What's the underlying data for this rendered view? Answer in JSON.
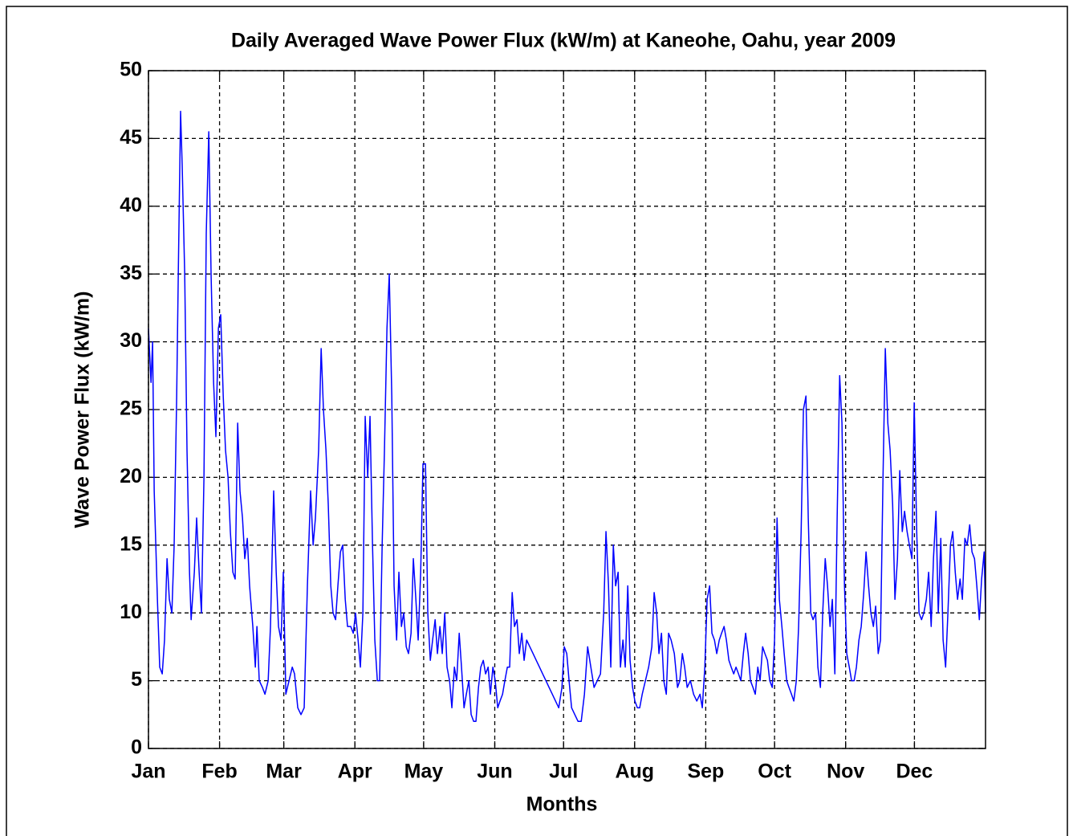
{
  "chart_data": {
    "type": "line",
    "title": "Daily Averaged Wave Power Flux (kW/m) at Kaneohe, Oahu, year 2009",
    "x_label": "Months",
    "y_label": "Wave Power Flux (kW/m)",
    "color": "#0000ff",
    "grid": true,
    "xlim": [
      0,
      365
    ],
    "ylim": [
      0,
      50
    ],
    "yticks": [
      0,
      5,
      10,
      15,
      20,
      25,
      30,
      35,
      40,
      45,
      50
    ],
    "xticks": [
      {
        "value": 0,
        "label": "Jan"
      },
      {
        "value": 31,
        "label": "Feb"
      },
      {
        "value": 59,
        "label": "Mar"
      },
      {
        "value": 90,
        "label": "Apr"
      },
      {
        "value": 120,
        "label": "May"
      },
      {
        "value": 151,
        "label": "Jun"
      },
      {
        "value": 181,
        "label": "Jul"
      },
      {
        "value": 212,
        "label": "Aug"
      },
      {
        "value": 243,
        "label": "Sep"
      },
      {
        "value": 273,
        "label": "Oct"
      },
      {
        "value": 304,
        "label": "Nov"
      },
      {
        "value": 334,
        "label": "Dec"
      }
    ],
    "x": [
      0,
      1.1,
      1.8,
      2.5,
      3.9,
      4.9,
      6.0,
      7.0,
      8.1,
      9.1,
      10.2,
      11.2,
      12.3,
      13.0,
      14.0,
      14.7,
      15.8,
      16.8,
      17.9,
      18.6,
      20.0,
      21.0,
      22.1,
      23.1,
      24.2,
      25.2,
      26.3,
      27.3,
      28.4,
      29.4,
      30.5,
      31.5,
      32.6,
      33.6,
      34.7,
      35.7,
      36.8,
      37.8,
      38.9,
      39.9,
      41.0,
      42.0,
      43.1,
      44.1,
      45.5,
      46.6,
      47.3,
      48.3,
      49.7,
      50.8,
      52.2,
      53.2,
      54.6,
      55.7,
      56.7,
      57.8,
      58.8,
      59.9,
      61.3,
      62.7,
      63.7,
      65.1,
      66.5,
      67.9,
      69.3,
      70.7,
      71.8,
      72.8,
      74.2,
      75.3,
      76.3,
      77.4,
      78.4,
      79.5,
      80.5,
      81.6,
      82.6,
      83.7,
      84.7,
      85.8,
      86.8,
      88.2,
      89.3,
      90.3,
      91.4,
      92.4,
      93.5,
      94.5,
      95.6,
      96.6,
      97.7,
      98.7,
      99.8,
      100.8,
      101.9,
      102.9,
      104.0,
      105.0,
      106.1,
      107.1,
      108.2,
      109.2,
      110.3,
      111.3,
      112.4,
      113.4,
      114.5,
      115.5,
      116.6,
      117.6,
      118.7,
      119.7,
      120.8,
      121.8,
      122.9,
      123.9,
      125.0,
      126.0,
      127.1,
      128.1,
      129.2,
      130.2,
      131.3,
      132.3,
      133.4,
      134.4,
      135.5,
      136.5,
      137.6,
      138.6,
      139.7,
      140.7,
      141.8,
      142.8,
      143.9,
      144.9,
      146.0,
      147.0,
      148.1,
      149.1,
      150.2,
      151.2,
      152.3,
      153.3,
      154.4,
      155.4,
      156.5,
      157.5,
      158.6,
      159.6,
      160.7,
      161.7,
      162.8,
      163.8,
      164.9,
      166.3,
      167.7,
      169.1,
      170.5,
      171.9,
      173.3,
      174.7,
      176.1,
      177.5,
      178.9,
      180.3,
      181.3,
      182.4,
      183.4,
      184.5,
      185.9,
      187.3,
      188.7,
      190.1,
      191.5,
      192.9,
      194.3,
      195.7,
      197.1,
      198.5,
      199.5,
      200.6,
      201.6,
      202.7,
      203.7,
      204.8,
      205.8,
      206.9,
      207.9,
      209.0,
      210.0,
      211.1,
      212.1,
      213.2,
      214.2,
      215.3,
      216.7,
      218.1,
      219.5,
      220.5,
      221.6,
      222.6,
      223.7,
      224.7,
      225.8,
      226.8,
      227.9,
      229.3,
      230.7,
      231.7,
      232.8,
      233.8,
      234.9,
      236.3,
      237.7,
      239.1,
      240.5,
      241.5,
      242.6,
      243.6,
      244.7,
      245.7,
      246.8,
      247.8,
      248.9,
      249.9,
      251.0,
      252.0,
      253.1,
      254.1,
      255.2,
      256.2,
      257.3,
      258.3,
      259.4,
      260.4,
      261.5,
      262.5,
      263.6,
      264.6,
      265.7,
      266.7,
      267.8,
      268.8,
      269.9,
      270.9,
      272.0,
      273.0,
      274.1,
      275.1,
      276.2,
      277.2,
      278.3,
      279.3,
      280.4,
      281.4,
      282.5,
      283.5,
      284.6,
      285.6,
      286.7,
      287.7,
      288.8,
      289.8,
      290.9,
      291.9,
      293.0,
      294.0,
      295.1,
      296.1,
      297.2,
      298.2,
      299.3,
      300.3,
      301.4,
      302.4,
      303.5,
      304.5,
      305.6,
      306.6,
      307.7,
      308.7,
      309.8,
      310.8,
      311.9,
      312.9,
      314.0,
      315.0,
      316.1,
      317.1,
      318.2,
      319.2,
      320.3,
      321.3,
      322.4,
      323.4,
      324.5,
      325.5,
      326.6,
      327.6,
      328.7,
      329.7,
      330.8,
      331.8,
      332.9,
      333.9,
      335.0,
      336.0,
      337.1,
      338.1,
      339.2,
      340.2,
      341.3,
      342.3,
      343.4,
      344.4,
      345.5,
      346.5,
      347.6,
      348.6,
      349.7,
      350.7,
      351.8,
      352.8,
      353.9,
      354.9,
      356.0,
      357.0,
      358.1,
      359.1,
      360.2,
      361.2,
      362.3,
      363.3,
      364.4,
      365
    ],
    "values": [
      31,
      27,
      30,
      19,
      11,
      6,
      5.5,
      8,
      14,
      11,
      10,
      15,
      26,
      35,
      47,
      43,
      35,
      22,
      13,
      9.5,
      13,
      17,
      13,
      10,
      20,
      38,
      45.5,
      35,
      27,
      23,
      31,
      32,
      26,
      22,
      20,
      16,
      13,
      12.5,
      24,
      19,
      17,
      14,
      15.5,
      12,
      9,
      6,
      9,
      5,
      4.5,
      4,
      5,
      9,
      19,
      13,
      9,
      8,
      13,
      4,
      5,
      6,
      5.5,
      3,
      2.5,
      3,
      12,
      19,
      15,
      17,
      22,
      29.5,
      25,
      22,
      18,
      12,
      10,
      9.5,
      12,
      14.5,
      15,
      11,
      9,
      9,
      8.5,
      10,
      8,
      6,
      10,
      24.5,
      20,
      24.5,
      15,
      8,
      5,
      5,
      15,
      22,
      31,
      35,
      26,
      12,
      8,
      13,
      9,
      10,
      7.5,
      7,
      8.5,
      14,
      11,
      8,
      13,
      21,
      21,
      10,
      6.5,
      8,
      9.5,
      7,
      9,
      7,
      10,
      6,
      5,
      3,
      6,
      5,
      8.5,
      6,
      3,
      4,
      5,
      2.5,
      2,
      2,
      4.5,
      6,
      6.5,
      5.5,
      6,
      4,
      6,
      5,
      3,
      3.5,
      4,
      5,
      6,
      6,
      11.5,
      9,
      9.5,
      7,
      8.5,
      6.5,
      8,
      7.5,
      7,
      6.5,
      6,
      5.5,
      5,
      4.5,
      4,
      3.5,
      3,
      4.5,
      7.5,
      7,
      5,
      3,
      2.5,
      2,
      2,
      4,
      7.5,
      6,
      4.5,
      5,
      5.5,
      10,
      16,
      12,
      6,
      15,
      12,
      13,
      6,
      8,
      6,
      12,
      6.5,
      4.5,
      3.5,
      3,
      3,
      4,
      5,
      6,
      7.5,
      11.5,
      10,
      7,
      8.5,
      5,
      4,
      8.5,
      8,
      7,
      4.5,
      5,
      7,
      6,
      4.5,
      5,
      4,
      3.5,
      4,
      3,
      6,
      11,
      12,
      8.5,
      8,
      7,
      8,
      8.5,
      9,
      8,
      6.5,
      6,
      5.5,
      6,
      5.5,
      5,
      7,
      8.5,
      7,
      5,
      4.5,
      4,
      6,
      5,
      7.5,
      7,
      6.5,
      5,
      4.5,
      8,
      17,
      11,
      9,
      7,
      5,
      4.5,
      4,
      3.5,
      5,
      9,
      16,
      25,
      26,
      17,
      10,
      9.5,
      10,
      6,
      4.5,
      10,
      14,
      12,
      9,
      11,
      5.5,
      17,
      27.5,
      24,
      12,
      7,
      6,
      5,
      5,
      6,
      8,
      9,
      11.5,
      14.5,
      12,
      10,
      9,
      10.5,
      7,
      8,
      20,
      29.5,
      24,
      22,
      18,
      11,
      14,
      20.5,
      16,
      17.5,
      16,
      15,
      14,
      25.5,
      16,
      10,
      9.5,
      10,
      11,
      13,
      9,
      14,
      17.5,
      10,
      15.5,
      8,
      6,
      10,
      15,
      16,
      13,
      11,
      12.5,
      11,
      15.5,
      15,
      16.5,
      14.5,
      14,
      12,
      9.5,
      12.5,
      14.5,
      10
    ]
  }
}
